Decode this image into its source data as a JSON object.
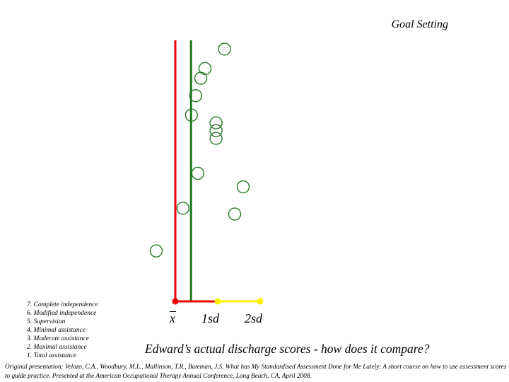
{
  "title": "Goal Setting",
  "scale_levels": [
    "7. Complete independence",
    "6. Modified independence",
    "5. Supervision",
    "4. Minimal assistance",
    "3. Moderate assistance",
    "2. Maximal assistance",
    "1. Total assistance"
  ],
  "question": "Edward’s actual discharge scores - how does it compare?",
  "citation": "Original presentation: Velozo, C.A., Woodbury, M.L., Mallinson, T.R., Bateman, J.S. What has My Standardised Assessment Done for Me Lately: A short course on how to use assessment scores to guide practice. Presented at the American Occupational Therapy Annual Conference, Long Beach, CA, April 2008.",
  "colors": {
    "mean_line": "#ee0000",
    "reference_line": "#1a7a1a",
    "sd2_segment": "#ffee00",
    "score_circle": "#2a7a2a"
  },
  "chart_data": {
    "type": "scatter",
    "x_ticks": [
      "x",
      "1sd",
      "2sd"
    ],
    "x_values": [
      0,
      1,
      2
    ],
    "xlim": [
      -0.5,
      2.5
    ],
    "mean_line_x": 0,
    "reference_line_x": 0.37,
    "points": [
      {
        "x": 1.16,
        "y": 13
      },
      {
        "x": 0.7,
        "y": 12
      },
      {
        "x": 0.6,
        "y": 11.5
      },
      {
        "x": 0.48,
        "y": 10.6
      },
      {
        "x": 0.38,
        "y": 9.6
      },
      {
        "x": 0.96,
        "y": 9.2
      },
      {
        "x": 0.96,
        "y": 8.8
      },
      {
        "x": 0.96,
        "y": 8.4
      },
      {
        "x": 0.53,
        "y": 6.6
      },
      {
        "x": 1.6,
        "y": 5.9
      },
      {
        "x": 0.18,
        "y": 4.8
      },
      {
        "x": 1.4,
        "y": 4.5
      },
      {
        "x": -0.45,
        "y": 2.6
      }
    ],
    "ylim": [
      0,
      14
    ]
  }
}
